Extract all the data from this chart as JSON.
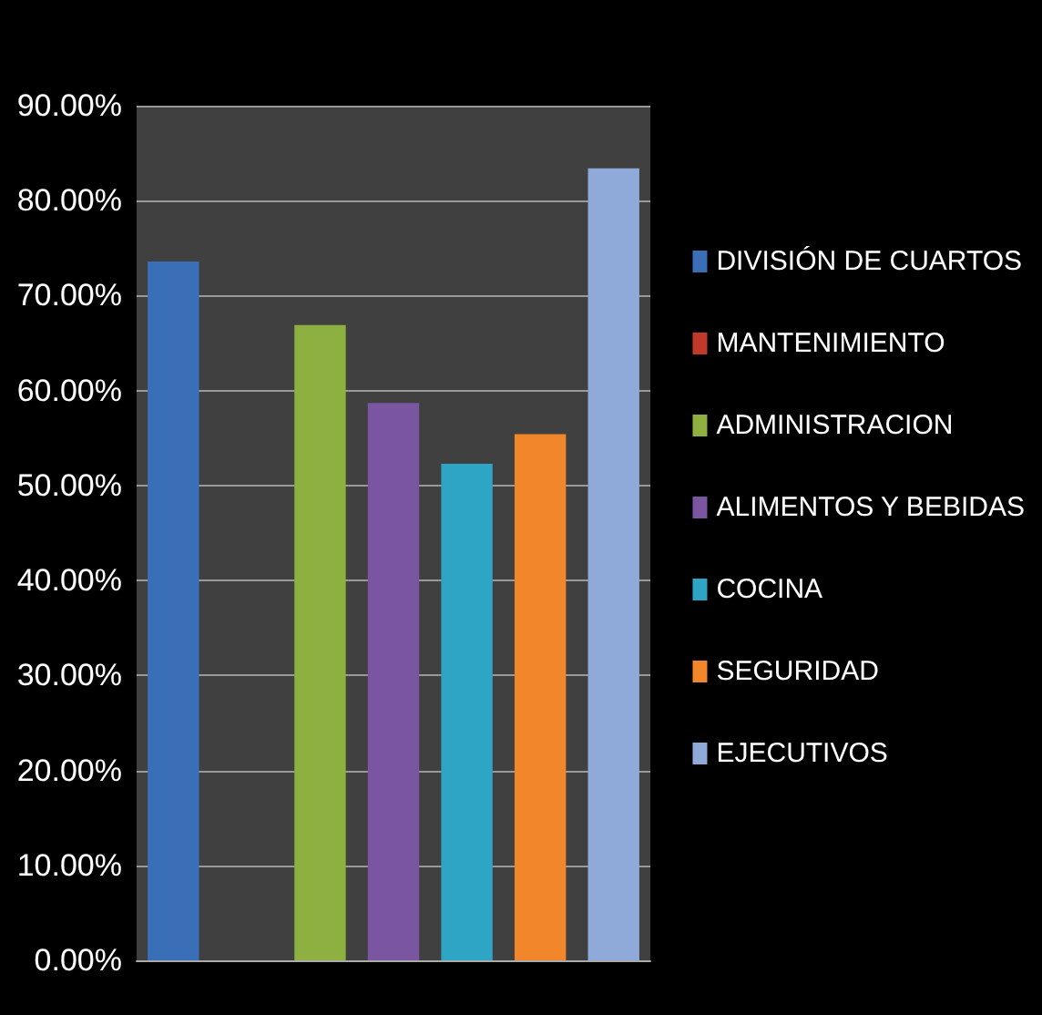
{
  "chart_data": {
    "type": "bar",
    "categories": [
      null,
      null,
      null,
      null,
      null,
      null,
      null
    ],
    "series": [
      {
        "name": "DIVISIÓN DE CUARTOS",
        "color": "#3a6fb7",
        "values": [
          73.6,
          null,
          null,
          null,
          null,
          null,
          null
        ]
      },
      {
        "name": "MANTENIMIENTO",
        "color": "#c0392b",
        "values": [
          null,
          0,
          null,
          null,
          null,
          null,
          null
        ]
      },
      {
        "name": "ADMINISTRACION",
        "color": "#8db041",
        "values": [
          null,
          null,
          66.9,
          null,
          null,
          null,
          null
        ]
      },
      {
        "name": "ALIMENTOS Y BEBIDAS",
        "color": "#7a55a0",
        "values": [
          null,
          null,
          null,
          58.7,
          null,
          null,
          null
        ]
      },
      {
        "name": "COCINA",
        "color": "#2fa5c6",
        "values": [
          null,
          null,
          null,
          null,
          52.3,
          null,
          null
        ]
      },
      {
        "name": "SEGURIDAD",
        "color": "#f2862a",
        "values": [
          null,
          null,
          null,
          null,
          null,
          55.4,
          null
        ]
      },
      {
        "name": "EJECUTIVOS",
        "color": "#8fa9d9",
        "values": [
          null,
          null,
          null,
          null,
          null,
          null,
          83.4
        ]
      }
    ],
    "ylim": [
      0,
      90
    ],
    "yticks": [
      {
        "value": 0,
        "label": "0.00%"
      },
      {
        "value": 10,
        "label": "10.00%"
      },
      {
        "value": 20,
        "label": "20.00%"
      },
      {
        "value": 30,
        "label": "30.00%"
      },
      {
        "value": 40,
        "label": "40.00%"
      },
      {
        "value": 50,
        "label": "50.00%"
      },
      {
        "value": 60,
        "label": "60.00%"
      },
      {
        "value": 70,
        "label": "70.00%"
      },
      {
        "value": 80,
        "label": "80.00%"
      },
      {
        "value": 90,
        "label": "90.00%"
      }
    ],
    "grid": "y",
    "legend": "right",
    "stacked": true,
    "tick_labels": "y"
  }
}
